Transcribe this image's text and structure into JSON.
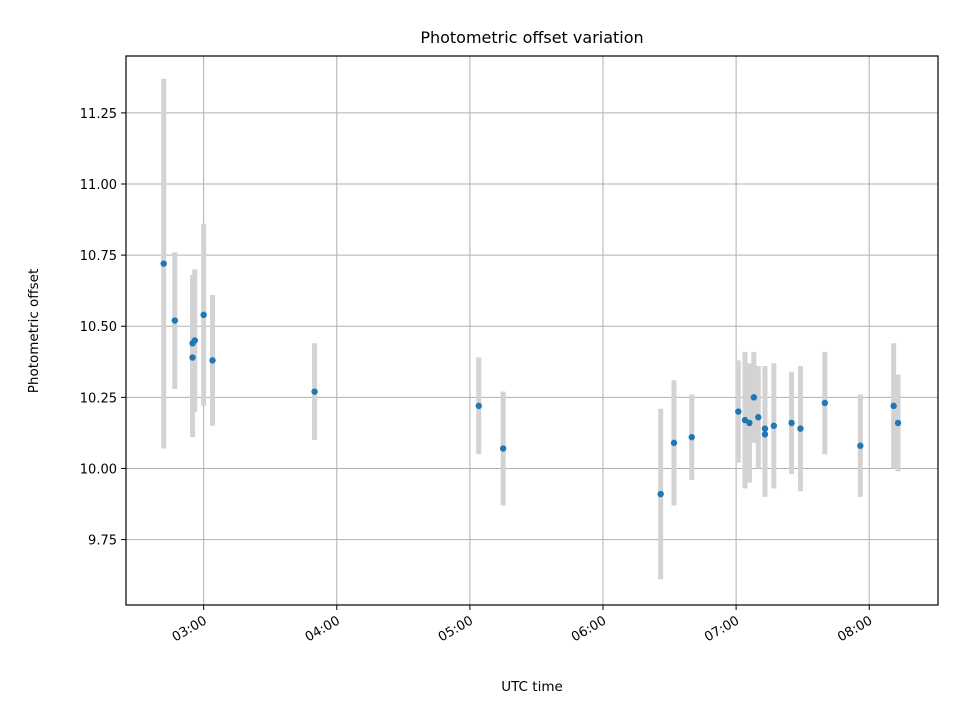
{
  "chart_data": {
    "type": "scatter",
    "title": "Photometric offset variation",
    "xlabel": "UTC time",
    "ylabel": "Photometric offset",
    "x_unit": "hours UTC",
    "xlim": [
      "02:25",
      "08:31"
    ],
    "ylim": [
      9.52,
      11.45
    ],
    "grid": true,
    "x_ticks": [
      "03:00",
      "04:00",
      "05:00",
      "06:00",
      "07:00",
      "08:00"
    ],
    "y_ticks": [
      "9.75",
      "10.00",
      "10.25",
      "10.50",
      "10.75",
      "11.00",
      "11.25"
    ],
    "colors": {
      "point": "#1f77b4",
      "errorbar": "#d3d3d3"
    },
    "points": [
      {
        "x": "02:42",
        "y": 10.72,
        "err": 0.65
      },
      {
        "x": "02:47",
        "y": 10.52,
        "err": 0.24
      },
      {
        "x": "02:55",
        "y": 10.39,
        "err": 0.28
      },
      {
        "x": "02:55",
        "y": 10.44,
        "err": 0.24
      },
      {
        "x": "02:56",
        "y": 10.45,
        "err": 0.25
      },
      {
        "x": "03:00",
        "y": 10.54,
        "err": 0.32
      },
      {
        "x": "03:04",
        "y": 10.38,
        "err": 0.23
      },
      {
        "x": "03:50",
        "y": 10.27,
        "err": 0.17
      },
      {
        "x": "05:04",
        "y": 10.22,
        "err": 0.17
      },
      {
        "x": "05:15",
        "y": 10.07,
        "err": 0.2
      },
      {
        "x": "06:26",
        "y": 9.91,
        "err": 0.3
      },
      {
        "x": "06:32",
        "y": 10.09,
        "err": 0.22
      },
      {
        "x": "06:40",
        "y": 10.11,
        "err": 0.15
      },
      {
        "x": "07:01",
        "y": 10.2,
        "err": 0.18
      },
      {
        "x": "07:04",
        "y": 10.17,
        "err": 0.24
      },
      {
        "x": "07:06",
        "y": 10.16,
        "err": 0.21
      },
      {
        "x": "07:08",
        "y": 10.25,
        "err": 0.16
      },
      {
        "x": "07:10",
        "y": 10.18,
        "err": 0.18
      },
      {
        "x": "07:13",
        "y": 10.12,
        "err": 0.22
      },
      {
        "x": "07:13",
        "y": 10.14,
        "err": 0.22
      },
      {
        "x": "07:17",
        "y": 10.15,
        "err": 0.22
      },
      {
        "x": "07:25",
        "y": 10.16,
        "err": 0.18
      },
      {
        "x": "07:29",
        "y": 10.14,
        "err": 0.22
      },
      {
        "x": "07:40",
        "y": 10.23,
        "err": 0.18
      },
      {
        "x": "07:56",
        "y": 10.08,
        "err": 0.18
      },
      {
        "x": "08:11",
        "y": 10.22,
        "err": 0.22
      },
      {
        "x": "08:13",
        "y": 10.16,
        "err": 0.17
      }
    ]
  }
}
